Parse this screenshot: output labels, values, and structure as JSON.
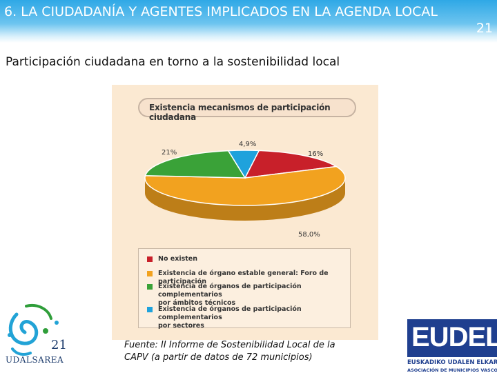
{
  "header": {
    "title": "6. LA CIUDADANÍA Y AGENTES IMPLICADOS EN LA AGENDA LOCAL",
    "number": "21"
  },
  "subtitle": "Participación ciudadana en torno a la sostenibilidad local",
  "chart_data": {
    "type": "pie",
    "title": "Existencia mecanismos de participación ciudadana",
    "slice_labels": [
      "16%",
      "58,0%",
      "21%",
      "4,9%"
    ],
    "series": [
      {
        "name": "No existen",
        "value": 16.0,
        "color": "#c8202a"
      },
      {
        "name": "Existencia de órgano estable general: Foro de participación",
        "value": 58.0,
        "color": "#f2a21f"
      },
      {
        "name": "Existencia de órganos de participación complementarios por ámbitos técnicos",
        "value": 21.0,
        "color": "#3aa238"
      },
      {
        "name": "Existencia de órganos de participación complementarios por sectores",
        "value": 4.9,
        "color": "#1fa2dc"
      }
    ],
    "legend": {
      "items": [
        {
          "line1": "No existen",
          "line2": ""
        },
        {
          "line1": "Existencia de órgano estable general: Foro de participación",
          "line2": ""
        },
        {
          "line1": "Existencia de órganos de participación complementarios",
          "line2": "por ámbitos técnicos"
        },
        {
          "line1": "Existencia de órganos de participación complementarios",
          "line2": "por sectores"
        }
      ],
      "placement": "bottom"
    }
  },
  "source": {
    "line1": "Fuente: II Informe de Sostenibilidad Local de la",
    "line2": "CAPV (a partir de datos de 72 municipios)"
  },
  "logo_left": {
    "text": "UDALSAREA",
    "number": "21"
  },
  "logo_right": {
    "word": "EUDEL",
    "line1": "EUSKADIKO UDALEN ELKARTEA",
    "line2": "ASOCIACIÓN DE MUNICIPIOS VASCOS"
  },
  "colors": {
    "header": "#2fa8e6",
    "panel": "#fbe9d2",
    "eudel": "#1f3f8f"
  }
}
